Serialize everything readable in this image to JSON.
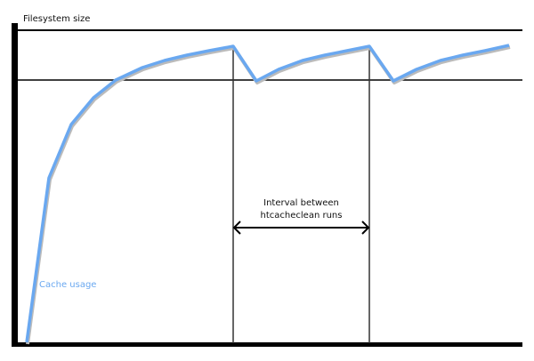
{
  "y_axis_label": "Filesystem size",
  "interval_label_line1": "Interval between",
  "interval_label_line2": "htcacheclean runs",
  "series_label": "Cache usage",
  "colors": {
    "series": "#6aa8f0",
    "axes": "#000000"
  }
}
